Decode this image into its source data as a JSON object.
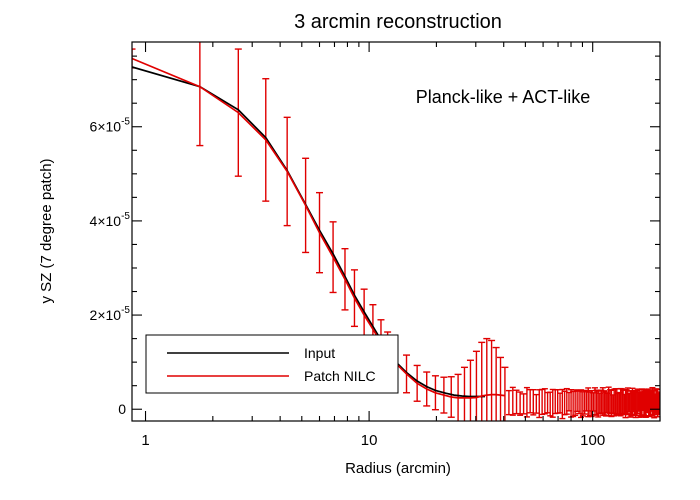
{
  "chart_data": {
    "type": "line",
    "title": "3 arcmin reconstruction",
    "xlabel": "Radius (arcmin)",
    "ylabel": "y SZ (7 degree patch)",
    "annotation": "Planck-like + ACT-like",
    "xscale": "log",
    "xlim": [
      0.87,
      200
    ],
    "ylim": [
      -2.5e-06,
      7.8e-05
    ],
    "x_ticks": [
      {
        "value": 1,
        "label": "1"
      },
      {
        "value": 10,
        "label": "10"
      },
      {
        "value": 100,
        "label": "100"
      }
    ],
    "y_ticks": [
      {
        "value": 0,
        "mant": "0",
        "exp": ""
      },
      {
        "value": 2e-05,
        "mant": "2×10",
        "exp": "-5"
      },
      {
        "value": 4e-05,
        "mant": "4×10",
        "exp": "-5"
      },
      {
        "value": 6e-05,
        "mant": "6×10",
        "exp": "-5"
      }
    ],
    "legend_position": "bottom-left",
    "colors": {
      "input": "#000000",
      "nilc": "#e00000"
    },
    "series": [
      {
        "name": "Input",
        "color": "#000000",
        "x": [
          0.87,
          1.75,
          2.6,
          3.45,
          4.3,
          5.2,
          6.0,
          6.9,
          7.8,
          8.6,
          9.5,
          10.4,
          11.3,
          12.1,
          13.0,
          14.7,
          16.4,
          18.1,
          19.8,
          22.0,
          24.0,
          26.0,
          28.0,
          30.0,
          33.0
        ],
        "y": [
          7.27e-05,
          6.85e-05,
          6.36e-05,
          5.77e-05,
          5.07e-05,
          4.35e-05,
          3.8e-05,
          3.3e-05,
          2.82e-05,
          2.42e-05,
          2.07e-05,
          1.76e-05,
          1.47e-05,
          1.24e-05,
          1.03e-05,
          7.8e-06,
          6e-06,
          4.8e-06,
          4e-06,
          3.4e-06,
          3e-06,
          2.8e-06,
          2.7e-06,
          2.7e-06,
          2.7e-06
        ]
      },
      {
        "name": "Patch NILC",
        "color": "#e00000",
        "x": [
          0.87,
          1.75,
          2.6,
          3.45,
          4.3,
          5.2,
          6.0,
          6.9,
          7.8,
          8.6,
          9.5,
          10.4,
          11.3,
          12.1,
          13.0,
          14.7,
          16.4,
          18.1,
          19.8,
          21.6,
          23.3,
          25.0,
          26.7,
          28.4,
          30.2,
          31.9,
          33.6,
          35.3,
          37.0,
          38.7,
          40.5
        ],
        "y": [
          7.45e-05,
          6.85e-05,
          6.3e-05,
          5.72e-05,
          5.05e-05,
          4.33e-05,
          3.75e-05,
          3.23e-05,
          2.76e-05,
          2.36e-05,
          2e-05,
          1.7e-05,
          1.42e-05,
          1.19e-05,
          1e-05,
          7.5e-06,
          5.5e-06,
          4.3e-06,
          3.5e-06,
          3e-06,
          2.6e-06,
          2.4e-06,
          2.4e-06,
          2.4e-06,
          2.5e-06,
          2.8e-06,
          3e-06,
          3.1e-06,
          3.1e-06,
          3e-06,
          2.9e-06
        ],
        "err": [
          2e-06,
          1.25e-05,
          1.35e-05,
          1.3e-05,
          1.15e-05,
          1e-05,
          8.5e-06,
          7.5e-06,
          6.5e-06,
          6e-06,
          5.5e-06,
          5.2e-06,
          4.8e-06,
          4.5e-06,
          4.2e-06,
          4e-06,
          3.8e-06,
          3.6e-06,
          3.6e-06,
          3.8e-06,
          4.3e-06,
          5e-06,
          6.5e-06,
          8e-06,
          9.8e-06,
          1.14e-05,
          1.2e-05,
          1.15e-05,
          1e-05,
          8e-06,
          6e-06
        ]
      }
    ],
    "noisy_errorbars": {
      "x_start": 42.2,
      "x_end": 200,
      "x_step": 1.72,
      "y_center": 1.4e-06,
      "half_width_min": 1.9e-06,
      "half_width_max": 3.2e-06
    },
    "legend": [
      {
        "label": "Input",
        "color": "#000000"
      },
      {
        "label": "Patch NILC",
        "color": "#e00000"
      }
    ]
  }
}
